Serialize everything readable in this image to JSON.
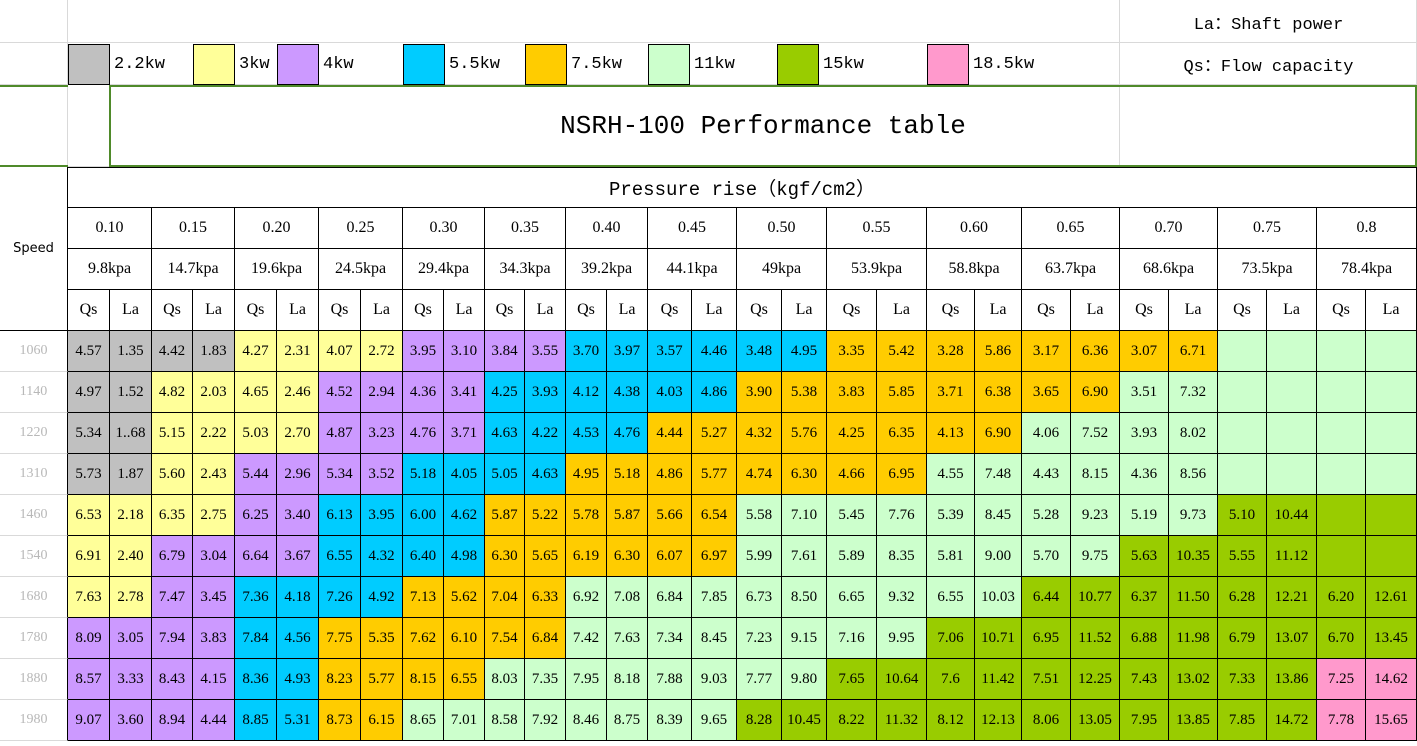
{
  "notes": [
    "La：Shaft power",
    "Qs：Flow capacity"
  ],
  "legend": [
    {
      "label": "2.2kw",
      "color": "#c0c0c0"
    },
    {
      "label": "3kw",
      "color": "#ffff99"
    },
    {
      "label": "4kw",
      "color": "#cc99ff"
    },
    {
      "label": "5.5kw",
      "color": "#00ccff"
    },
    {
      "label": "7.5kw",
      "color": "#ffcc00"
    },
    {
      "label": "11kw",
      "color": "#ccffcc"
    },
    {
      "label": "15kw",
      "color": "#99cc00"
    },
    {
      "label": "18.5kw",
      "color": "#ff99cc"
    }
  ],
  "title": "NSRH-100 Performance table",
  "header": {
    "speed": "Speed",
    "pressure_rise": "Pressure rise（kgf/cm2）",
    "qs": "Qs",
    "la": "La",
    "pressures": [
      {
        "kgf": "0.10",
        "kpa": "9.8kpa"
      },
      {
        "kgf": "0.15",
        "kpa": "14.7kpa"
      },
      {
        "kgf": "0.20",
        "kpa": "19.6kpa"
      },
      {
        "kgf": "0.25",
        "kpa": "24.5kpa"
      },
      {
        "kgf": "0.30",
        "kpa": "29.4kpa"
      },
      {
        "kgf": "0.35",
        "kpa": "34.3kpa"
      },
      {
        "kgf": "0.40",
        "kpa": "39.2kpa"
      },
      {
        "kgf": "0.45",
        "kpa": "44.1kpa"
      },
      {
        "kgf": "0.50",
        "kpa": "49kpa"
      },
      {
        "kgf": "0.55",
        "kpa": "53.9kpa"
      },
      {
        "kgf": "0.60",
        "kpa": "58.8kpa"
      },
      {
        "kgf": "0.65",
        "kpa": "63.7kpa"
      },
      {
        "kgf": "0.70",
        "kpa": "68.6kpa"
      },
      {
        "kgf": "0.75",
        "kpa": "73.5kpa"
      },
      {
        "kgf": "0.8",
        "kpa": "78.4kpa"
      }
    ]
  },
  "rows": [
    {
      "speed": "1060",
      "cells": [
        {
          "qs": "4.57",
          "la": "1.35",
          "color": "#c0c0c0"
        },
        {
          "qs": "4.42",
          "la": "1.83",
          "color": "#c0c0c0"
        },
        {
          "qs": "4.27",
          "la": "2.31",
          "color": "#ffff99"
        },
        {
          "qs": "4.07",
          "la": "2.72",
          "color": "#ffff99"
        },
        {
          "qs": "3.95",
          "la": "3.10",
          "color": "#cc99ff"
        },
        {
          "qs": "3.84",
          "la": "3.55",
          "color": "#cc99ff"
        },
        {
          "qs": "3.70",
          "la": "3.97",
          "color": "#00ccff"
        },
        {
          "qs": "3.57",
          "la": "4.46",
          "color": "#00ccff"
        },
        {
          "qs": "3.48",
          "la": "4.95",
          "color": "#00ccff"
        },
        {
          "qs": "3.35",
          "la": "5.42",
          "color": "#ffcc00"
        },
        {
          "qs": "3.28",
          "la": "5.86",
          "color": "#ffcc00"
        },
        {
          "qs": "3.17",
          "la": "6.36",
          "color": "#ffcc00"
        },
        {
          "qs": "3.07",
          "la": "6.71",
          "color": "#ffcc00"
        },
        {
          "color": "#ccffcc"
        },
        {
          "color": "#ccffcc"
        }
      ]
    },
    {
      "speed": "1140",
      "cells": [
        {
          "qs": "4.97",
          "la": "1.52",
          "color": "#c0c0c0"
        },
        {
          "qs": "4.82",
          "la": "2.03",
          "color": "#ffff99"
        },
        {
          "qs": "4.65",
          "la": "2.46",
          "color": "#ffff99"
        },
        {
          "qs": "4.52",
          "la": "2.94",
          "color": "#cc99ff"
        },
        {
          "qs": "4.36",
          "la": "3.41",
          "color": "#cc99ff"
        },
        {
          "qs": "4.25",
          "la": "3.93",
          "color": "#00ccff"
        },
        {
          "qs": "4.12",
          "la": "4.38",
          "color": "#00ccff"
        },
        {
          "qs": "4.03",
          "la": "4.86",
          "color": "#00ccff"
        },
        {
          "qs": "3.90",
          "la": "5.38",
          "color": "#ffcc00"
        },
        {
          "qs": "3.83",
          "la": "5.85",
          "color": "#ffcc00"
        },
        {
          "qs": "3.71",
          "la": "6.38",
          "color": "#ffcc00"
        },
        {
          "qs": "3.65",
          "la": "6.90",
          "color": "#ffcc00"
        },
        {
          "qs": "3.51",
          "la": "7.32",
          "color": "#ccffcc"
        },
        {
          "color": "#ccffcc"
        },
        {
          "color": "#ccffcc"
        }
      ]
    },
    {
      "speed": "1220",
      "cells": [
        {
          "qs": "5.34",
          "la": "1..68",
          "color": "#c0c0c0"
        },
        {
          "qs": "5.15",
          "la": "2.22",
          "color": "#ffff99"
        },
        {
          "qs": "5.03",
          "la": "2.70",
          "color": "#ffff99"
        },
        {
          "qs": "4.87",
          "la": "3.23",
          "color": "#cc99ff"
        },
        {
          "qs": "4.76",
          "la": "3.71",
          "color": "#cc99ff"
        },
        {
          "qs": "4.63",
          "la": "4.22",
          "color": "#00ccff"
        },
        {
          "qs": "4.53",
          "la": "4.76",
          "color": "#00ccff"
        },
        {
          "qs": "4.44",
          "la": "5.27",
          "color": "#ffcc00"
        },
        {
          "qs": "4.32",
          "la": "5.76",
          "color": "#ffcc00"
        },
        {
          "qs": "4.25",
          "la": "6.35",
          "color": "#ffcc00"
        },
        {
          "qs": "4.13",
          "la": "6.90",
          "color": "#ffcc00"
        },
        {
          "qs": "4.06",
          "la": "7.52",
          "color": "#ccffcc"
        },
        {
          "qs": "3.93",
          "la": "8.02",
          "color": "#ccffcc"
        },
        {
          "color": "#ccffcc"
        },
        {
          "color": "#ccffcc"
        }
      ]
    },
    {
      "speed": "1310",
      "cells": [
        {
          "qs": "5.73",
          "la": "1.87",
          "color": "#c0c0c0"
        },
        {
          "qs": "5.60",
          "la": "2.43",
          "color": "#ffff99"
        },
        {
          "qs": "5.44",
          "la": "2.96",
          "color": "#cc99ff"
        },
        {
          "qs": "5.34",
          "la": "3.52",
          "color": "#cc99ff"
        },
        {
          "qs": "5.18",
          "la": "4.05",
          "color": "#00ccff"
        },
        {
          "qs": "5.05",
          "la": "4.63",
          "color": "#00ccff"
        },
        {
          "qs": "4.95",
          "la": "5.18",
          "color": "#ffcc00"
        },
        {
          "qs": "4.86",
          "la": "5.77",
          "color": "#ffcc00"
        },
        {
          "qs": "4.74",
          "la": "6.30",
          "color": "#ffcc00"
        },
        {
          "qs": "4.66",
          "la": "6.95",
          "color": "#ffcc00"
        },
        {
          "qs": "4.55",
          "la": "7.48",
          "color": "#ccffcc"
        },
        {
          "qs": "4.43",
          "la": "8.15",
          "color": "#ccffcc"
        },
        {
          "qs": "4.36",
          "la": "8.56",
          "color": "#ccffcc"
        },
        {
          "color": "#ccffcc"
        },
        {
          "color": "#ccffcc"
        }
      ]
    },
    {
      "speed": "1460",
      "cells": [
        {
          "qs": "6.53",
          "la": "2.18",
          "color": "#ffff99"
        },
        {
          "qs": "6.35",
          "la": "2.75",
          "color": "#ffff99"
        },
        {
          "qs": "6.25",
          "la": "3.40",
          "color": "#cc99ff"
        },
        {
          "qs": "6.13",
          "la": "3.95",
          "color": "#00ccff"
        },
        {
          "qs": "6.00",
          "la": "4.62",
          "color": "#00ccff"
        },
        {
          "qs": "5.87",
          "la": "5.22",
          "color": "#ffcc00"
        },
        {
          "qs": "5.78",
          "la": "5.87",
          "color": "#ffcc00"
        },
        {
          "qs": "5.66",
          "la": "6.54",
          "color": "#ffcc00"
        },
        {
          "qs": "5.58",
          "la": "7.10",
          "color": "#ccffcc"
        },
        {
          "qs": "5.45",
          "la": "7.76",
          "color": "#ccffcc"
        },
        {
          "qs": "5.39",
          "la": "8.45",
          "color": "#ccffcc"
        },
        {
          "qs": "5.28",
          "la": "9.23",
          "color": "#ccffcc"
        },
        {
          "qs": "5.19",
          "la": "9.73",
          "color": "#ccffcc"
        },
        {
          "qs": "5.10",
          "la": "10.44",
          "color": "#99cc00"
        },
        {
          "color": "#99cc00"
        }
      ]
    },
    {
      "speed": "1540",
      "cells": [
        {
          "qs": "6.91",
          "la": "2.40",
          "color": "#ffff99"
        },
        {
          "qs": "6.79",
          "la": "3.04",
          "color": "#cc99ff"
        },
        {
          "qs": "6.64",
          "la": "3.67",
          "color": "#cc99ff"
        },
        {
          "qs": "6.55",
          "la": "4.32",
          "color": "#00ccff"
        },
        {
          "qs": "6.40",
          "la": "4.98",
          "color": "#00ccff"
        },
        {
          "qs": "6.30",
          "la": "5.65",
          "color": "#ffcc00"
        },
        {
          "qs": "6.19",
          "la": "6.30",
          "color": "#ffcc00"
        },
        {
          "qs": "6.07",
          "la": "6.97",
          "color": "#ffcc00"
        },
        {
          "qs": "5.99",
          "la": "7.61",
          "color": "#ccffcc"
        },
        {
          "qs": "5.89",
          "la": "8.35",
          "color": "#ccffcc"
        },
        {
          "qs": "5.81",
          "la": "9.00",
          "color": "#ccffcc"
        },
        {
          "qs": "5.70",
          "la": "9.75",
          "color": "#ccffcc"
        },
        {
          "qs": "5.63",
          "la": "10.35",
          "color": "#99cc00"
        },
        {
          "qs": "5.55",
          "la": "11.12",
          "color": "#99cc00"
        },
        {
          "color": "#99cc00"
        }
      ]
    },
    {
      "speed": "1680",
      "cells": [
        {
          "qs": "7.63",
          "la": "2.78",
          "color": "#ffff99"
        },
        {
          "qs": "7.47",
          "la": "3.45",
          "color": "#cc99ff"
        },
        {
          "qs": "7.36",
          "la": "4.18",
          "color": "#00ccff"
        },
        {
          "qs": "7.26",
          "la": "4.92",
          "color": "#00ccff"
        },
        {
          "qs": "7.13",
          "la": "5.62",
          "color": "#ffcc00"
        },
        {
          "qs": "7.04",
          "la": "6.33",
          "color": "#ffcc00"
        },
        {
          "qs": "6.92",
          "la": "7.08",
          "color": "#ccffcc"
        },
        {
          "qs": "6.84",
          "la": "7.85",
          "color": "#ccffcc"
        },
        {
          "qs": "6.73",
          "la": "8.50",
          "color": "#ccffcc"
        },
        {
          "qs": "6.65",
          "la": "9.32",
          "color": "#ccffcc"
        },
        {
          "qs": "6.55",
          "la": "10.03",
          "color": "#ccffcc"
        },
        {
          "qs": "6.44",
          "la": "10.77",
          "color": "#99cc00"
        },
        {
          "qs": "6.37",
          "la": "11.50",
          "color": "#99cc00"
        },
        {
          "qs": "6.28",
          "la": "12.21",
          "color": "#99cc00"
        },
        {
          "qs": "6.20",
          "la": "12.61",
          "color": "#99cc00"
        }
      ]
    },
    {
      "speed": "1780",
      "cells": [
        {
          "qs": "8.09",
          "la": "3.05",
          "color": "#cc99ff"
        },
        {
          "qs": "7.94",
          "la": "3.83",
          "color": "#cc99ff"
        },
        {
          "qs": "7.84",
          "la": "4.56",
          "color": "#00ccff"
        },
        {
          "qs": "7.75",
          "la": "5.35",
          "color": "#ffcc00"
        },
        {
          "qs": "7.62",
          "la": "6.10",
          "color": "#ffcc00"
        },
        {
          "qs": "7.54",
          "la": "6.84",
          "color": "#ffcc00"
        },
        {
          "qs": "7.42",
          "la": "7.63",
          "color": "#ccffcc"
        },
        {
          "qs": "7.34",
          "la": "8.45",
          "color": "#ccffcc"
        },
        {
          "qs": "7.23",
          "la": "9.15",
          "color": "#ccffcc"
        },
        {
          "qs": "7.16",
          "la": "9.95",
          "color": "#ccffcc"
        },
        {
          "qs": "7.06",
          "la": "10.71",
          "color": "#99cc00"
        },
        {
          "qs": "6.95",
          "la": "11.52",
          "color": "#99cc00"
        },
        {
          "qs": "6.88",
          "la": "11.98",
          "color": "#99cc00"
        },
        {
          "qs": "6.79",
          "la": "13.07",
          "color": "#99cc00"
        },
        {
          "qs": "6.70",
          "la": "13.45",
          "color": "#99cc00"
        }
      ]
    },
    {
      "speed": "1880",
      "cells": [
        {
          "qs": "8.57",
          "la": "3.33",
          "color": "#cc99ff"
        },
        {
          "qs": "8.43",
          "la": "4.15",
          "color": "#cc99ff"
        },
        {
          "qs": "8.36",
          "la": "4.93",
          "color": "#00ccff"
        },
        {
          "qs": "8.23",
          "la": "5.77",
          "color": "#ffcc00"
        },
        {
          "qs": "8.15",
          "la": "6.55",
          "color": "#ffcc00"
        },
        {
          "qs": "8.03",
          "la": "7.35",
          "color": "#ccffcc"
        },
        {
          "qs": "7.95",
          "la": "8.18",
          "color": "#ccffcc"
        },
        {
          "qs": "7.88",
          "la": "9.03",
          "color": "#ccffcc"
        },
        {
          "qs": "7.77",
          "la": "9.80",
          "color": "#ccffcc"
        },
        {
          "qs": "7.65",
          "la": "10.64",
          "color": "#99cc00"
        },
        {
          "qs": "7.6",
          "la": "11.42",
          "color": "#99cc00"
        },
        {
          "qs": "7.51",
          "la": "12.25",
          "color": "#99cc00"
        },
        {
          "qs": "7.43",
          "la": "13.02",
          "color": "#99cc00"
        },
        {
          "qs": "7.33",
          "la": "13.86",
          "color": "#99cc00"
        },
        {
          "qs": "7.25",
          "la": "14.62",
          "color": "#ff99cc"
        }
      ]
    },
    {
      "speed": "1980",
      "cells": [
        {
          "qs": "9.07",
          "la": "3.60",
          "color": "#cc99ff"
        },
        {
          "qs": "8.94",
          "la": "4.44",
          "color": "#cc99ff"
        },
        {
          "qs": "8.85",
          "la": "5.31",
          "color": "#00ccff"
        },
        {
          "qs": "8.73",
          "la": "6.15",
          "color": "#ffcc00"
        },
        {
          "qs": "8.65",
          "la": "7.01",
          "color": "#ccffcc"
        },
        {
          "qs": "8.58",
          "la": "7.92",
          "color": "#ccffcc"
        },
        {
          "qs": "8.46",
          "la": "8.75",
          "color": "#ccffcc"
        },
        {
          "qs": "8.39",
          "la": "9.65",
          "color": "#ccffcc"
        },
        {
          "qs": "8.28",
          "la": "10.45",
          "color": "#99cc00"
        },
        {
          "qs": "8.22",
          "la": "11.32",
          "color": "#99cc00"
        },
        {
          "qs": "8.12",
          "la": "12.13",
          "color": "#99cc00"
        },
        {
          "qs": "8.06",
          "la": "13.05",
          "color": "#99cc00"
        },
        {
          "qs": "7.95",
          "la": "13.85",
          "color": "#99cc00"
        },
        {
          "qs": "7.85",
          "la": "14.72",
          "color": "#99cc00"
        },
        {
          "qs": "7.78",
          "la": "15.65",
          "color": "#ff99cc"
        }
      ]
    }
  ]
}
